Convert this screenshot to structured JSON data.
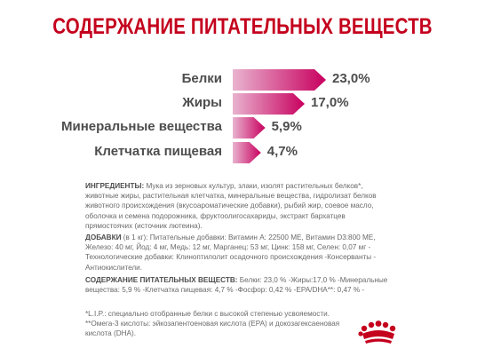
{
  "title": "СОДЕРЖАНИЕ ПИТАТЕЛЬНЫХ ВЕЩЕСТВ",
  "chart_data": {
    "type": "bar",
    "categories": [
      "Белки",
      "Жиры",
      "Минеральные вещества",
      "Клетчатка пищевая"
    ],
    "values": [
      23.0,
      17.0,
      5.9,
      4.7
    ],
    "value_labels": [
      "23,0%",
      "17,0%",
      "5,9%",
      "4,7%"
    ],
    "colors": {
      "start": "#e9b3cf",
      "end": "#c8005f"
    }
  },
  "ingredients": {
    "label": "ИНГРЕДИЕНТЫ:",
    "lines": [
      "Мука из зерновых культур, злаки, изолят растительных белков*,",
      "животные жиры, растительная клетчатка, минеральные вещества, гидролизат белков",
      "животного происхождения (вкусоароматические добавки), рыбий жир, соевое масло,",
      "оболочка и семена подорожника, фруктоолигосахариды, экстракт бархатцев",
      "прямостоячих (источник лютеина)."
    ]
  },
  "additives": {
    "label": "ДОБАВКИ",
    "unit": " (в 1 кг):",
    "lines": [
      "Питательные добавки: Витамин А: 22500 МЕ, Витамин D3:800 МЕ,",
      "Железо: 40 мг, Йод: 4 мг, Медь: 12 мг, Марганец: 53 мг, Цинк: 158 мг, Селен: 0,07 мг -",
      "Технологические добавки: Клиноптилолит осадочного происхождения -Консерванты -",
      "Антиокислители."
    ]
  },
  "nutrients": {
    "label": "СОДЕРЖАНИЕ ПИТАТЕЛЬНЫХ ВЕЩЕСТВ:",
    "lines": [
      " Белки: 23,0 % -Жиры:17,0 % -Минеральные",
      "вещества: 5,9 % -Клетчатка пищевая: 4,7 % -Фосфор: 0,42 % -EPA/DHA**: 0,47 % -"
    ]
  },
  "footnotes": [
    "*L.I.P.: специально отобранные белки с высокой степенью усвояемости.",
    "**Омега-3 кислоты: эйкозапентоеновая кислота (EPA) и докозагексаеновая",
    "кислота (DHA)."
  ],
  "logo": {
    "name": "crown-logo",
    "color": "#c4001d"
  }
}
